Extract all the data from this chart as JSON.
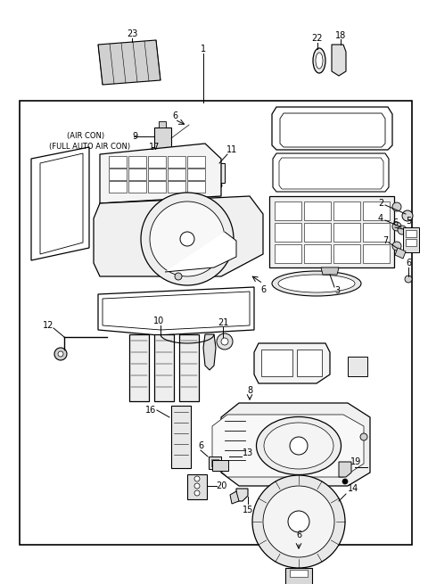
{
  "bg_color": "#ffffff",
  "line_color": "#000000",
  "fig_width": 4.8,
  "fig_height": 6.55,
  "dpi": 100
}
